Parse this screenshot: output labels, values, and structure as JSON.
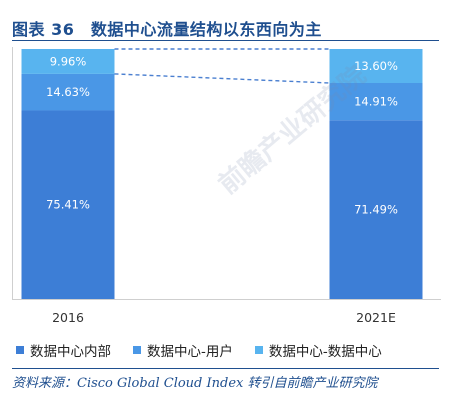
{
  "figure": {
    "title": "图表 36　数据中心流量结构以东西向为主",
    "source": "资料来源：Cisco Global Cloud Index  转引自前瞻产业研究院"
  },
  "colors": {
    "internal": "#3d7ed6",
    "user": "#4a97e6",
    "dc_to_dc": "#58b4ef",
    "connector": "#4a7fd0"
  },
  "chart_data": {
    "type": "bar",
    "stacked": true,
    "categories": [
      "2016",
      "2021E"
    ],
    "series": [
      {
        "name": "数据中心内部",
        "values": [
          75.41,
          71.49
        ],
        "labels": [
          "75.41%",
          "71.49%"
        ]
      },
      {
        "name": "数据中心-用户",
        "values": [
          14.63,
          14.91
        ],
        "labels": [
          "14.63%",
          "14.91%"
        ]
      },
      {
        "name": "数据中心-数据中心",
        "values": [
          9.96,
          13.6
        ],
        "labels": [
          "9.96%",
          "13.60%"
        ]
      }
    ],
    "ylim": [
      0,
      100
    ],
    "legend_position": "bottom",
    "grid": false
  },
  "legend": {
    "items": [
      {
        "label": "数据中心内部",
        "color": "#3d7ed6"
      },
      {
        "label": "数据中心-用户",
        "color": "#4a97e6"
      },
      {
        "label": "数据中心-数据中心",
        "color": "#58b4ef"
      }
    ]
  },
  "watermark": "前瞻产业研究院"
}
